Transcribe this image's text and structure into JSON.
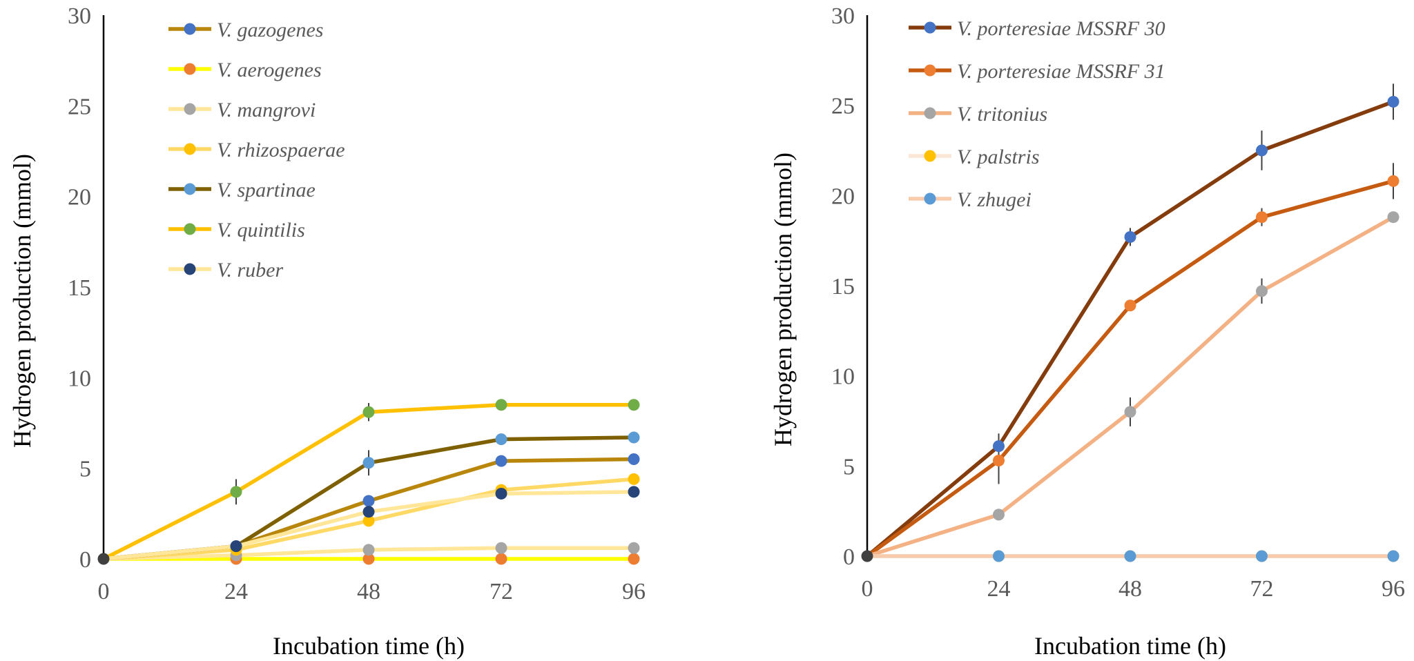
{
  "chart_data": [
    {
      "type": "line",
      "title": "",
      "xlabel": "Incubation time (h)",
      "ylabel": "Hydrogen production (mmol)",
      "x": [
        0,
        24,
        48,
        72,
        96
      ],
      "xticks": [
        "0",
        "24",
        "48",
        "72",
        "96"
      ],
      "yticks": [
        "0",
        "5",
        "10",
        "15",
        "20",
        "25",
        "30"
      ],
      "xlim": [
        0,
        96
      ],
      "ylim": [
        0,
        30
      ],
      "grid": false,
      "legend_position": "top-left",
      "series": [
        {
          "name": "V. gazogenes",
          "line_color": "#B8860B",
          "marker_color": "#4472C4",
          "values": [
            0,
            0.7,
            3.2,
            5.4,
            5.5
          ]
        },
        {
          "name": "V. aerogenes",
          "line_color": "#FFFF00",
          "marker_color": "#ED7D31",
          "values": [
            0,
            0.0,
            0.0,
            0.0,
            0.0
          ]
        },
        {
          "name": "V. mangrovi",
          "line_color": "#FFE699",
          "marker_color": "#A5A5A5",
          "values": [
            0,
            0.2,
            0.5,
            0.6,
            0.6
          ]
        },
        {
          "name": "V. rhizospaerae",
          "line_color": "#FFD966",
          "marker_color": "#FFC000",
          "values": [
            0,
            0.5,
            2.1,
            3.8,
            4.4
          ]
        },
        {
          "name": "V. spartinae",
          "line_color": "#7F6000",
          "marker_color": "#5B9BD5",
          "values": [
            0,
            0.7,
            5.3,
            6.6,
            6.7
          ]
        },
        {
          "name": "V. quintilis",
          "line_color": "#FFC000",
          "marker_color": "#70AD47",
          "values": [
            0,
            3.7,
            8.1,
            8.5,
            8.5
          ]
        },
        {
          "name": "V. ruber",
          "line_color": "#FFE699",
          "marker_color": "#264478",
          "values": [
            0,
            0.7,
            2.6,
            3.6,
            3.7
          ]
        }
      ],
      "error_bars": [
        {
          "series": "V. quintilis",
          "x": 24,
          "err": 0.7
        },
        {
          "series": "V. quintilis",
          "x": 48,
          "err": 0.5
        },
        {
          "series": "V. spartinae",
          "x": 48,
          "err": 0.7
        }
      ]
    },
    {
      "type": "line",
      "title": "",
      "xlabel": "Incubation time (h)",
      "ylabel": "Hydrogen production (mmol)",
      "x": [
        0,
        24,
        48,
        72,
        96
      ],
      "xticks": [
        "0",
        "24",
        "48",
        "72",
        "96"
      ],
      "yticks": [
        "0",
        "5",
        "10",
        "15",
        "20",
        "25",
        "30"
      ],
      "xlim": [
        0,
        96
      ],
      "ylim": [
        0,
        30
      ],
      "grid": false,
      "legend_position": "top-left",
      "series": [
        {
          "name": "V. porteresiae MSSRF 30",
          "line_color": "#843C0C",
          "marker_color": "#4472C4",
          "values": [
            0,
            6.1,
            17.7,
            22.5,
            25.2
          ]
        },
        {
          "name": "V. porteresiae MSSRF 31",
          "line_color": "#C55A11",
          "marker_color": "#ED7D31",
          "values": [
            0,
            5.3,
            13.9,
            18.8,
            20.8
          ]
        },
        {
          "name": "V. tritonius",
          "line_color": "#F4B183",
          "marker_color": "#A5A5A5",
          "values": [
            0,
            2.3,
            8.0,
            14.7,
            18.8
          ]
        },
        {
          "name": "V. palstris",
          "line_color": "#FBE5D6",
          "marker_color": "#FFC000",
          "values": [
            0,
            0.0,
            0.0,
            0.0,
            0.0
          ]
        },
        {
          "name": "V. zhugei",
          "line_color": "#F8CBAD",
          "marker_color": "#5B9BD5",
          "values": [
            0,
            0.0,
            0.0,
            0.0,
            0.0
          ]
        }
      ],
      "error_bars": [
        {
          "series": "V. porteresiae MSSRF 30",
          "x": 24,
          "err": 0.7
        },
        {
          "series": "V. porteresiae MSSRF 30",
          "x": 48,
          "err": 0.5
        },
        {
          "series": "V. porteresiae MSSRF 30",
          "x": 72,
          "err": 1.1
        },
        {
          "series": "V. porteresiae MSSRF 30",
          "x": 96,
          "err": 1.0
        },
        {
          "series": "V. porteresiae MSSRF 31",
          "x": 24,
          "err": 1.3
        },
        {
          "series": "V. porteresiae MSSRF 31",
          "x": 72,
          "err": 0.5
        },
        {
          "series": "V. porteresiae MSSRF 31",
          "x": 96,
          "err": 1.0
        },
        {
          "series": "V. tritonius",
          "x": 48,
          "err": 0.8
        },
        {
          "series": "V. tritonius",
          "x": 72,
          "err": 0.7
        }
      ]
    }
  ]
}
